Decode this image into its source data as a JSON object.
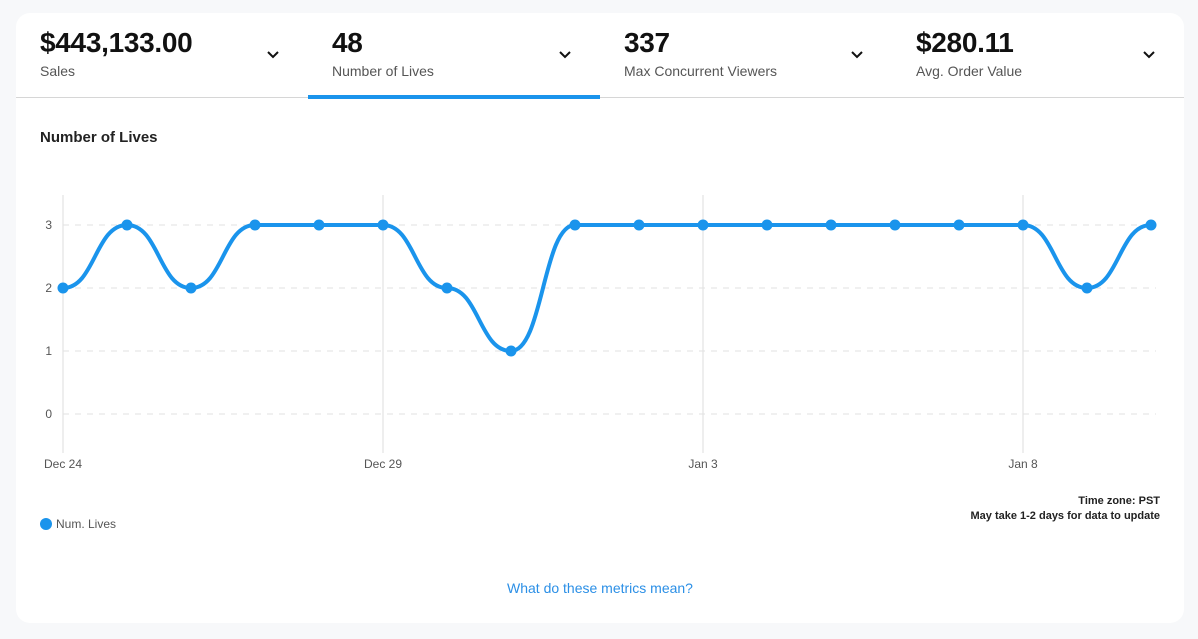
{
  "metrics": [
    {
      "value": "$443,133.00",
      "label": "Sales",
      "active": false
    },
    {
      "value": "48",
      "label": "Number of Lives",
      "active": true
    },
    {
      "value": "337",
      "label": "Max Concurrent Viewers",
      "active": false
    },
    {
      "value": "$280.11",
      "label": "Avg. Order Value",
      "active": false
    }
  ],
  "chart_title": "Number of Lives",
  "legend": {
    "label": "Num. Lives",
    "color": "#1a94ec"
  },
  "notes": {
    "timezone": "Time zone: PST",
    "update": "May take 1-2 days for data to update"
  },
  "help_link": "What do these metrics mean?",
  "chart_data": {
    "type": "line",
    "title": "Number of Lives",
    "xlabel": "",
    "ylabel": "",
    "x": [
      "Dec 24",
      "Dec 25",
      "Dec 26",
      "Dec 27",
      "Dec 28",
      "Dec 29",
      "Dec 30",
      "Dec 31",
      "Jan 1",
      "Jan 2",
      "Jan 3",
      "Jan 4",
      "Jan 5",
      "Jan 6",
      "Jan 7",
      "Jan 8",
      "Jan 9",
      "Jan 10"
    ],
    "series": [
      {
        "name": "Num. Lives",
        "values": [
          2,
          3,
          2,
          3,
          3,
          3,
          2,
          1,
          3,
          3,
          3,
          3,
          3,
          3,
          3,
          3,
          2,
          3
        ],
        "color": "#1a94ec"
      }
    ],
    "x_tick_labels": [
      "Dec 24",
      "Dec 29",
      "Jan 3",
      "Jan 8"
    ],
    "y_ticks": [
      0,
      1,
      2,
      3
    ],
    "ylim": [
      -0.5,
      3.5
    ],
    "grid": "dashed horizontal",
    "legend_position": "bottom-left"
  }
}
